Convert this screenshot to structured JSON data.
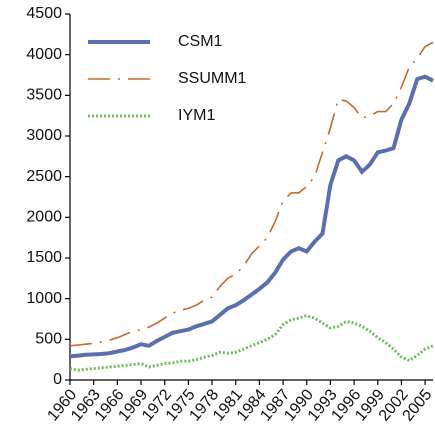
{
  "chart_data": {
    "type": "line",
    "x": [
      1960,
      1961,
      1962,
      1963,
      1964,
      1965,
      1966,
      1967,
      1968,
      1969,
      1970,
      1971,
      1972,
      1973,
      1974,
      1975,
      1976,
      1977,
      1978,
      1979,
      1980,
      1981,
      1982,
      1983,
      1984,
      1985,
      1986,
      1987,
      1988,
      1989,
      1990,
      1991,
      1992,
      1993,
      1994,
      1995,
      1996,
      1997,
      1998,
      1999,
      2000,
      2001,
      2002,
      2003,
      2004,
      2005,
      2006
    ],
    "series": [
      {
        "name": "CSM1",
        "color": "#5a6fad",
        "style": "solid",
        "values": [
          290,
          300,
          310,
          315,
          320,
          330,
          350,
          370,
          400,
          440,
          420,
          480,
          530,
          580,
          600,
          620,
          660,
          690,
          720,
          800,
          880,
          920,
          980,
          1050,
          1120,
          1200,
          1320,
          1480,
          1580,
          1620,
          1580,
          1700,
          1800,
          2400,
          2700,
          2750,
          2700,
          2560,
          2650,
          2800,
          2820,
          2850,
          3200,
          3400,
          3700,
          3730,
          3680
        ]
      },
      {
        "name": "SSUMM1",
        "color": "#c8682a",
        "style": "dashed",
        "values": [
          420,
          430,
          440,
          450,
          470,
          490,
          520,
          560,
          600,
          620,
          650,
          700,
          760,
          820,
          860,
          880,
          920,
          980,
          1020,
          1150,
          1250,
          1300,
          1400,
          1550,
          1650,
          1750,
          1950,
          2200,
          2300,
          2300,
          2380,
          2500,
          2800,
          3100,
          3450,
          3430,
          3350,
          3220,
          3250,
          3300,
          3300,
          3400,
          3600,
          3850,
          3950,
          4100,
          4150
        ]
      },
      {
        "name": "IYM1",
        "color": "#6cbd5a",
        "style": "dotted",
        "values": [
          140,
          120,
          130,
          140,
          150,
          160,
          170,
          180,
          190,
          200,
          160,
          180,
          200,
          210,
          230,
          230,
          250,
          280,
          300,
          340,
          330,
          340,
          380,
          420,
          460,
          500,
          560,
          680,
          740,
          760,
          790,
          760,
          700,
          640,
          660,
          720,
          700,
          660,
          600,
          520,
          460,
          380,
          280,
          240,
          300,
          380,
          420
        ]
      }
    ],
    "xlim": [
      1960,
      2006
    ],
    "xticks": [
      1960,
      1963,
      1966,
      1969,
      1972,
      1975,
      1978,
      1981,
      1984,
      1987,
      1990,
      1993,
      1996,
      1999,
      2002,
      2005
    ],
    "ylim": [
      0,
      4500
    ],
    "yticks": [
      0,
      500,
      1000,
      1500,
      2000,
      2500,
      3000,
      3500,
      4000,
      4500
    ],
    "legend": "top-left"
  }
}
